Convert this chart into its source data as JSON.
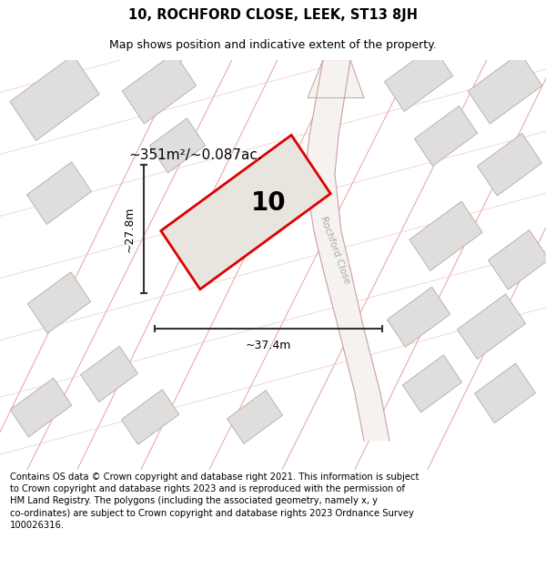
{
  "title_line1": "10, ROCHFORD CLOSE, LEEK, ST13 8JH",
  "title_line2": "Map shows position and indicative extent of the property.",
  "footer_text": "Contains OS data © Crown copyright and database right 2021. This information is subject\nto Crown copyright and database rights 2023 and is reproduced with the permission of\nHM Land Registry. The polygons (including the associated geometry, namely x, y\nco-ordinates) are subject to Crown copyright and database rights 2023 Ordnance Survey\n100026316.",
  "area_text": "~351m²/~0.087ac.",
  "property_number": "10",
  "dim_width": "~37.4m",
  "dim_height": "~27.8m",
  "map_bg": "#ffffff",
  "road_line_color": "#e8a0a0",
  "building_color": "#e0dedd",
  "building_edge": "#b8b4b0",
  "property_fill": "#e8e4de",
  "property_edge": "#dd0000",
  "street_label": "Rochford Close",
  "street_label_color": "#aaaaaa",
  "dim_color": "#333333",
  "title_fontsize": 10.5,
  "subtitle_fontsize": 9,
  "footer_fontsize": 7.2,
  "map_road_lw": 0.8,
  "map_road_color": "#e8aaaa",
  "map_road_color2": "#f0c8c8"
}
